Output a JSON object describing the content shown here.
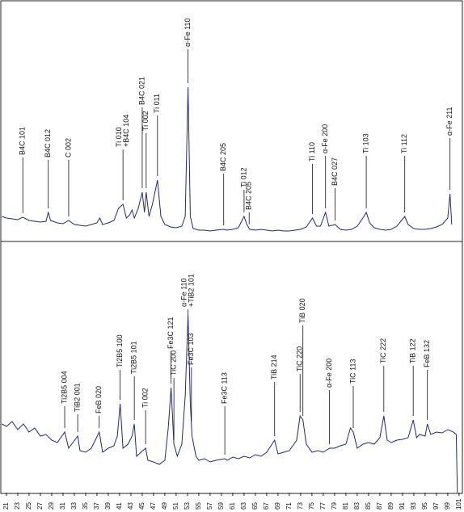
{
  "chart_data": [
    {
      "type": "line",
      "color": "#1f2a78",
      "xlim": [
        20.15,
        101.3
      ],
      "ylim": [
        0,
        296
      ],
      "x": [
        20.2,
        21,
        22,
        23,
        23.9,
        25,
        26,
        27,
        28,
        28.4,
        28.8,
        30,
        31,
        32,
        33,
        34,
        35,
        36,
        37,
        37.5,
        38,
        39,
        40,
        40.8,
        41.6,
        42.2,
        42.8,
        43.2,
        43.6,
        44.3,
        45,
        45.4,
        45.7,
        46.2,
        46.8,
        47.7,
        48.3,
        49,
        50,
        51,
        52,
        52.6,
        53.1,
        53.5,
        54,
        55,
        56,
        57,
        58,
        59.4,
        60,
        61,
        62,
        63,
        63.5,
        64,
        65,
        66,
        67,
        68,
        69,
        70,
        71,
        72,
        73,
        74,
        75.1,
        75.8,
        76.5,
        77.4,
        78,
        79.1,
        80,
        81,
        82,
        83,
        84,
        84.6,
        85.2,
        86,
        87,
        88,
        89,
        90,
        91.4,
        92,
        93,
        94,
        95,
        96,
        97,
        98,
        99,
        99.4,
        99.7
      ],
      "values": [
        30,
        28,
        27,
        26,
        29,
        25,
        24,
        23,
        24,
        35,
        25,
        22,
        21,
        25,
        20,
        19,
        18,
        20,
        22,
        28,
        20,
        22,
        25,
        40,
        45,
        28,
        32,
        38,
        28,
        40,
        60,
        35,
        60,
        30,
        45,
        75,
        30,
        20,
        17,
        16,
        18,
        30,
        190,
        30,
        15,
        13,
        13,
        12,
        13,
        14,
        13,
        14,
        16,
        30,
        20,
        14,
        13,
        14,
        13,
        12,
        13,
        12,
        12,
        13,
        14,
        17,
        28,
        18,
        18,
        35,
        18,
        20,
        14,
        13,
        14,
        18,
        28,
        35,
        22,
        16,
        14,
        13,
        14,
        18,
        30,
        20,
        15,
        14,
        14,
        15,
        17,
        20,
        28,
        58,
        20
      ],
      "annotations": [
        {
          "text": [
            "B4C 101"
          ],
          "x": 23.9
        },
        {
          "text": [
            "B4C 012"
          ],
          "x": 28.4
        },
        {
          "text": [
            "C 002"
          ],
          "x": 32
        },
        {
          "text": [
            "Ti 010",
            "+B4C 104"
          ],
          "x": 41.6
        },
        {
          "text": [
            "B4C 021"
          ],
          "x": 45
        },
        {
          "text": [
            "Ti 002"
          ],
          "x": 45.7
        },
        {
          "text": [
            "Ti 011"
          ],
          "x": 47.7
        },
        {
          "text": [
            "α-Fe 110"
          ],
          "x": 53.1
        },
        {
          "text": [
            "B4C 205"
          ],
          "x": 59.4
        },
        {
          "text": [
            "Ti 012"
          ],
          "x": 63
        },
        {
          "text": [
            "B4C 205"
          ],
          "x": 63.9
        },
        {
          "text": [
            "Ti 110"
          ],
          "x": 75.1
        },
        {
          "text": [
            "α-Fe 200"
          ],
          "x": 77.4
        },
        {
          "text": [
            "B4C 027"
          ],
          "x": 79.1
        },
        {
          "text": [
            "Ti 103"
          ],
          "x": 84.6
        },
        {
          "text": [
            "Ti 112"
          ],
          "x": 91.4
        },
        {
          "text": [
            "α-Fe 211"
          ],
          "x": 99.4
        }
      ]
    },
    {
      "type": "line",
      "color": "#1f2a78",
      "xlim": [
        20.15,
        101.3
      ],
      "ylim": [
        0,
        310
      ],
      "xticks": [
        21,
        23,
        25,
        27,
        29,
        31,
        33,
        35,
        37,
        39,
        41,
        43,
        45,
        47,
        49,
        51,
        53,
        55,
        57,
        59,
        61,
        63,
        65,
        67,
        69,
        71,
        73,
        75,
        77,
        79,
        81,
        83,
        85,
        87,
        89,
        91,
        93,
        95,
        97,
        99,
        101
      ],
      "x": [
        20.2,
        21,
        22,
        23,
        24,
        25,
        26,
        27,
        28,
        29,
        30,
        31.3,
        32,
        33.6,
        34,
        35,
        36,
        37.4,
        38,
        39,
        40,
        40.6,
        41.1,
        41.6,
        42.5,
        43.2,
        43.6,
        44,
        45.6,
        46,
        47,
        48,
        49,
        49.6,
        50.1,
        50.6,
        51.2,
        52,
        52.6,
        53.1,
        53.5,
        53.8,
        54.5,
        55,
        56,
        57,
        58,
        59.6,
        60,
        61,
        62,
        63,
        64,
        65,
        66,
        67,
        68.4,
        69,
        70,
        71,
        72.3,
        72.9,
        73.4,
        74,
        75,
        76,
        77,
        78.1,
        79,
        80,
        81,
        81.8,
        82.3,
        83,
        84,
        85,
        86,
        87,
        87.7,
        88.3,
        89,
        90,
        91,
        92,
        92.9,
        93.5,
        94,
        95,
        95.4,
        96,
        97,
        98,
        99,
        100,
        100.5,
        100.7
      ],
      "values": [
        85,
        82,
        88,
        78,
        85,
        75,
        80,
        70,
        72,
        65,
        62,
        75,
        55,
        70,
        52,
        50,
        55,
        75,
        50,
        55,
        58,
        70,
        110,
        55,
        60,
        70,
        85,
        45,
        55,
        40,
        38,
        35,
        40,
        80,
        130,
        60,
        45,
        60,
        120,
        220,
        110,
        70,
        45,
        40,
        42,
        38,
        40,
        42,
        40,
        44,
        42,
        45,
        43,
        47,
        45,
        50,
        65,
        48,
        50,
        52,
        65,
        95,
        90,
        60,
        50,
        52,
        50,
        55,
        55,
        58,
        60,
        80,
        75,
        55,
        60,
        62,
        60,
        68,
        95,
        65,
        62,
        65,
        66,
        68,
        90,
        68,
        72,
        70,
        85,
        72,
        75,
        74,
        78,
        75,
        72,
        0
      ],
      "annotations": [
        {
          "text": [
            "Ti2B5 004"
          ],
          "x": 31.3
        },
        {
          "text": [
            "TiB2 001"
          ],
          "x": 33.6
        },
        {
          "text": [
            "FeB 020"
          ],
          "x": 37.4
        },
        {
          "text": [
            "Ti2B5 100"
          ],
          "x": 41.1
        },
        {
          "text": [
            "Ti2B5 101"
          ],
          "x": 43.6
        },
        {
          "text": [
            "Ti 002"
          ],
          "x": 45.6
        },
        {
          "text": [
            "TiC 200"
          ],
          "x": 50.6
        },
        {
          "text": [
            "Fe3C 121"
          ],
          "x": 50.1
        },
        {
          "text": [
            "α-Fe 110",
            "+TiB2 101"
          ],
          "x": 53.1
        },
        {
          "text": [
            "Fe3C 103"
          ],
          "x": 53.7
        },
        {
          "text": [
            "Fe3C 113"
          ],
          "x": 59.6
        },
        {
          "text": [
            "TiB 214"
          ],
          "x": 68.4
        },
        {
          "text": [
            "TiC 220"
          ],
          "x": 72.9
        },
        {
          "text": [
            "TiB 020"
          ],
          "x": 73.4
        },
        {
          "text": [
            "α-Fe 200"
          ],
          "x": 78.1
        },
        {
          "text": [
            "TiC 113"
          ],
          "x": 82.3
        },
        {
          "text": [
            "TiC 222"
          ],
          "x": 87.7
        },
        {
          "text": [
            "TiB 122"
          ],
          "x": 92.9
        },
        {
          "text": [
            "FeB 132"
          ],
          "x": 95.4
        }
      ]
    }
  ]
}
